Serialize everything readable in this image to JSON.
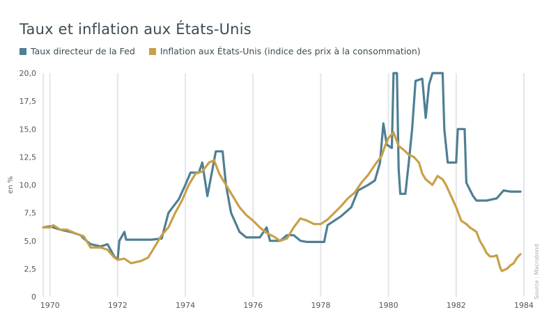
{
  "chart_data": {
    "type": "line",
    "title": "Taux et inflation aux États-Unis",
    "ylabel": "en %",
    "source": "Source : Macrobond",
    "xlim": [
      1969.8,
      1984.0
    ],
    "ylim": [
      0,
      20
    ],
    "x_ticks": [
      "1970",
      "1972",
      "1974",
      "1976",
      "1978",
      "1980",
      "1982",
      "1984"
    ],
    "y_ticks": [
      "0",
      "2,5",
      "5,0",
      "7,5",
      "10,0",
      "12,5",
      "15,0",
      "17,5",
      "20,0"
    ],
    "grid": "vertical",
    "legend_position": "top-left",
    "series": [
      {
        "name": "Taux directeur de la Fed",
        "color": "#4f7f93",
        "points": [
          [
            1969.8,
            6.2
          ],
          [
            1970.0,
            6.3
          ],
          [
            1970.3,
            6.0
          ],
          [
            1970.6,
            5.8
          ],
          [
            1970.9,
            5.5
          ],
          [
            1971.0,
            5.2
          ],
          [
            1971.2,
            4.7
          ],
          [
            1971.5,
            4.5
          ],
          [
            1971.7,
            4.7
          ],
          [
            1971.9,
            3.6
          ],
          [
            1972.0,
            3.3
          ],
          [
            1972.05,
            5.0
          ],
          [
            1972.2,
            5.8
          ],
          [
            1972.25,
            5.1
          ],
          [
            1973.0,
            5.1
          ],
          [
            1973.3,
            5.2
          ],
          [
            1973.5,
            7.5
          ],
          [
            1973.8,
            8.7
          ],
          [
            1974.0,
            10.0
          ],
          [
            1974.15,
            11.1
          ],
          [
            1974.4,
            11.1
          ],
          [
            1974.5,
            12.0
          ],
          [
            1974.65,
            9.0
          ],
          [
            1974.8,
            11.4
          ],
          [
            1974.9,
            13.0
          ],
          [
            1975.1,
            13.0
          ],
          [
            1975.2,
            10.0
          ],
          [
            1975.35,
            7.5
          ],
          [
            1975.6,
            5.8
          ],
          [
            1975.8,
            5.3
          ],
          [
            1976.2,
            5.3
          ],
          [
            1976.4,
            6.2
          ],
          [
            1976.5,
            5.0
          ],
          [
            1976.8,
            5.0
          ],
          [
            1977.0,
            5.5
          ],
          [
            1977.2,
            5.5
          ],
          [
            1977.4,
            5.0
          ],
          [
            1977.6,
            4.9
          ],
          [
            1978.1,
            4.9
          ],
          [
            1978.2,
            6.4
          ],
          [
            1978.6,
            7.2
          ],
          [
            1978.9,
            8.0
          ],
          [
            1979.1,
            9.5
          ],
          [
            1979.4,
            10.0
          ],
          [
            1979.6,
            10.4
          ],
          [
            1979.75,
            12.0
          ],
          [
            1979.85,
            15.5
          ],
          [
            1979.95,
            13.6
          ],
          [
            1980.1,
            13.3
          ],
          [
            1980.15,
            20.0
          ],
          [
            1980.25,
            20.0
          ],
          [
            1980.3,
            11.5
          ],
          [
            1980.35,
            9.2
          ],
          [
            1980.5,
            9.2
          ],
          [
            1980.6,
            12.0
          ],
          [
            1980.7,
            15.0
          ],
          [
            1980.8,
            19.3
          ],
          [
            1981.0,
            19.5
          ],
          [
            1981.1,
            16.0
          ],
          [
            1981.2,
            19.0
          ],
          [
            1981.3,
            20.0
          ],
          [
            1981.6,
            20.0
          ],
          [
            1981.65,
            15.0
          ],
          [
            1981.75,
            12.0
          ],
          [
            1982.0,
            12.0
          ],
          [
            1982.05,
            15.0
          ],
          [
            1982.25,
            15.0
          ],
          [
            1982.3,
            10.2
          ],
          [
            1982.5,
            9.0
          ],
          [
            1982.6,
            8.6
          ],
          [
            1982.9,
            8.6
          ],
          [
            1983.2,
            8.8
          ],
          [
            1983.4,
            9.5
          ],
          [
            1983.6,
            9.4
          ],
          [
            1983.9,
            9.4
          ]
        ]
      },
      {
        "name": "Inflation aux États-Unis (indice des prix à la consommation)",
        "color": "#c9a047",
        "points": [
          [
            1969.8,
            6.2
          ],
          [
            1970.0,
            6.2
          ],
          [
            1970.1,
            6.4
          ],
          [
            1970.3,
            6.0
          ],
          [
            1970.5,
            6.0
          ],
          [
            1970.8,
            5.6
          ],
          [
            1971.0,
            5.4
          ],
          [
            1971.2,
            4.4
          ],
          [
            1971.5,
            4.4
          ],
          [
            1971.7,
            4.2
          ],
          [
            1971.9,
            3.5
          ],
          [
            1972.0,
            3.3
          ],
          [
            1972.2,
            3.4
          ],
          [
            1972.4,
            3.0
          ],
          [
            1972.7,
            3.2
          ],
          [
            1972.9,
            3.5
          ],
          [
            1973.1,
            4.5
          ],
          [
            1973.3,
            5.5
          ],
          [
            1973.5,
            6.2
          ],
          [
            1973.7,
            7.5
          ],
          [
            1973.9,
            8.6
          ],
          [
            1974.1,
            10.0
          ],
          [
            1974.3,
            11.0
          ],
          [
            1974.5,
            11.2
          ],
          [
            1974.7,
            12.0
          ],
          [
            1974.85,
            12.2
          ],
          [
            1975.0,
            11.0
          ],
          [
            1975.2,
            10.0
          ],
          [
            1975.4,
            9.0
          ],
          [
            1975.6,
            8.0
          ],
          [
            1975.8,
            7.3
          ],
          [
            1976.0,
            6.8
          ],
          [
            1976.2,
            6.2
          ],
          [
            1976.4,
            5.7
          ],
          [
            1976.6,
            5.4
          ],
          [
            1976.8,
            5.0
          ],
          [
            1977.0,
            5.2
          ],
          [
            1977.2,
            6.2
          ],
          [
            1977.4,
            7.0
          ],
          [
            1977.6,
            6.8
          ],
          [
            1977.8,
            6.5
          ],
          [
            1978.0,
            6.5
          ],
          [
            1978.2,
            6.9
          ],
          [
            1978.4,
            7.5
          ],
          [
            1978.6,
            8.1
          ],
          [
            1978.8,
            8.8
          ],
          [
            1979.0,
            9.3
          ],
          [
            1979.2,
            10.2
          ],
          [
            1979.4,
            10.9
          ],
          [
            1979.6,
            11.8
          ],
          [
            1979.8,
            12.6
          ],
          [
            1979.9,
            13.5
          ],
          [
            1980.0,
            14.2
          ],
          [
            1980.15,
            14.7
          ],
          [
            1980.3,
            13.5
          ],
          [
            1980.5,
            13.0
          ],
          [
            1980.6,
            12.7
          ],
          [
            1980.75,
            12.5
          ],
          [
            1980.9,
            12.0
          ],
          [
            1981.0,
            11.0
          ],
          [
            1981.1,
            10.5
          ],
          [
            1981.3,
            10.0
          ],
          [
            1981.45,
            10.8
          ],
          [
            1981.6,
            10.5
          ],
          [
            1981.7,
            10.0
          ],
          [
            1981.85,
            9.0
          ],
          [
            1982.0,
            8.0
          ],
          [
            1982.15,
            6.8
          ],
          [
            1982.3,
            6.5
          ],
          [
            1982.4,
            6.2
          ],
          [
            1982.5,
            6.0
          ],
          [
            1982.6,
            5.8
          ],
          [
            1982.7,
            5.0
          ],
          [
            1982.8,
            4.5
          ],
          [
            1982.9,
            3.9
          ],
          [
            1983.0,
            3.6
          ],
          [
            1983.1,
            3.6
          ],
          [
            1983.2,
            3.7
          ],
          [
            1983.3,
            2.6
          ],
          [
            1983.35,
            2.3
          ],
          [
            1983.5,
            2.5
          ],
          [
            1983.6,
            2.8
          ],
          [
            1983.7,
            3.0
          ],
          [
            1983.8,
            3.5
          ],
          [
            1983.9,
            3.8
          ]
        ]
      }
    ]
  }
}
